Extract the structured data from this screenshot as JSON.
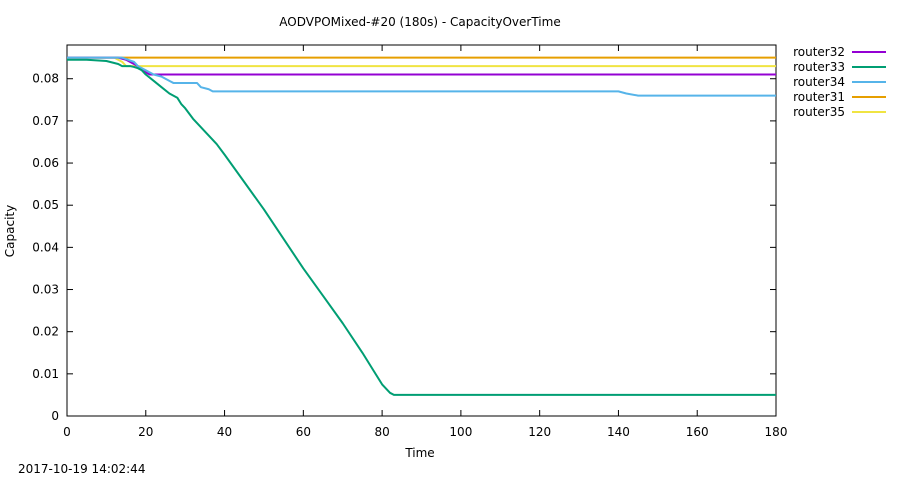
{
  "chart_data": {
    "type": "line",
    "title": "AODVPOMixed-#20 (180s) - CapacityOverTime",
    "xlabel": "Time",
    "ylabel": "Capacity",
    "xlim": [
      0,
      180
    ],
    "ylim": [
      0,
      0.088
    ],
    "xticks": [
      0,
      20,
      40,
      60,
      80,
      100,
      120,
      140,
      160,
      180
    ],
    "yticks": [
      0,
      0.01,
      0.02,
      0.03,
      0.04,
      0.05,
      0.06,
      0.07,
      0.08
    ],
    "ytick_labels": [
      "0",
      "0.01",
      "0.02",
      "0.03",
      "0.04",
      "0.05",
      "0.06",
      "0.07",
      "0.08"
    ],
    "grid": false,
    "legend": "outside-right",
    "series": [
      {
        "name": "router32",
        "color": "#9400d3",
        "x": [
          0,
          13,
          15,
          16,
          18,
          19,
          20,
          21,
          22,
          180
        ],
        "y": [
          0.085,
          0.085,
          0.0845,
          0.084,
          0.083,
          0.082,
          0.0815,
          0.081,
          0.081,
          0.081
        ]
      },
      {
        "name": "router33",
        "color": "#009e73",
        "x": [
          0,
          5,
          10,
          13,
          14,
          15,
          16,
          17,
          18,
          19,
          20,
          22,
          24,
          26,
          28,
          29,
          30,
          32,
          35,
          38,
          40,
          45,
          50,
          55,
          60,
          65,
          70,
          75,
          78,
          80,
          82,
          83,
          84,
          180
        ],
        "y": [
          0.0845,
          0.0845,
          0.0842,
          0.0835,
          0.083,
          0.083,
          0.083,
          0.0828,
          0.0825,
          0.082,
          0.081,
          0.0795,
          0.078,
          0.0765,
          0.0755,
          0.074,
          0.073,
          0.0705,
          0.0675,
          0.0645,
          0.062,
          0.0555,
          0.049,
          0.042,
          0.035,
          0.0285,
          0.022,
          0.015,
          0.0105,
          0.0075,
          0.0055,
          0.005,
          0.005,
          0.005
        ]
      },
      {
        "name": "router34",
        "color": "#56b4e9",
        "x": [
          0,
          14,
          17,
          18,
          20,
          22,
          24,
          26,
          27,
          28,
          33,
          34,
          36,
          37,
          140,
          142,
          145,
          147,
          180
        ],
        "y": [
          0.085,
          0.085,
          0.084,
          0.083,
          0.082,
          0.081,
          0.0805,
          0.0795,
          0.079,
          0.079,
          0.079,
          0.078,
          0.0775,
          0.077,
          0.077,
          0.0765,
          0.076,
          0.076,
          0.076
        ]
      },
      {
        "name": "router31",
        "color": "#e69f00",
        "x": [
          0,
          180
        ],
        "y": [
          0.085,
          0.085
        ]
      },
      {
        "name": "router35",
        "color": "#f0e442",
        "x": [
          0,
          12,
          14,
          15,
          180
        ],
        "y": [
          0.085,
          0.085,
          0.084,
          0.083,
          0.083
        ]
      }
    ]
  },
  "footer": {
    "timestamp": "2017-10-19 14:02:44"
  }
}
